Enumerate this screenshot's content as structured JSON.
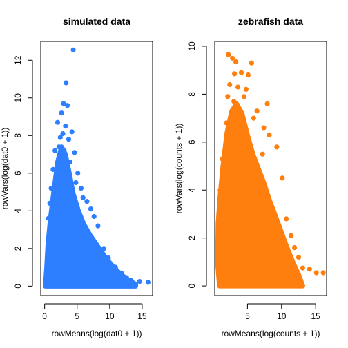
{
  "chart_data": [
    {
      "type": "scatter",
      "title": "simulated data",
      "xlabel": "rowMeans(log(dat0 + 1))",
      "ylabel": "rowVars(log(dat0 + 1))",
      "color": "#2e7fff",
      "xlim": [
        -0.6,
        16.6
      ],
      "ylim": [
        -0.5,
        13.0
      ],
      "xticks": [
        0,
        5,
        10,
        15
      ],
      "xtick_labels": [
        "0",
        "5",
        "10",
        "15"
      ],
      "yticks": [
        0,
        2,
        4,
        6,
        8,
        10,
        12
      ],
      "ytick_labels": [
        "0",
        "2",
        "4",
        "6",
        "8",
        "10",
        "12"
      ],
      "grid": false,
      "legend": "none",
      "points": [
        [
          4.4,
          12.55
        ],
        [
          3.3,
          10.8
        ],
        [
          2.9,
          9.7
        ],
        [
          3.5,
          9.6
        ],
        [
          2.6,
          9.2
        ],
        [
          2.0,
          8.7
        ],
        [
          3.2,
          8.5
        ],
        [
          2.8,
          8.1
        ],
        [
          2.4,
          7.9
        ],
        [
          4.2,
          8.2
        ],
        [
          3.7,
          7.8
        ],
        [
          2.2,
          7.4
        ],
        [
          3.0,
          7.2
        ],
        [
          1.6,
          7.2
        ],
        [
          4.6,
          7.1
        ],
        [
          2.5,
          6.8
        ],
        [
          3.9,
          6.6
        ],
        [
          1.3,
          6.2
        ],
        [
          5.1,
          6.0
        ],
        [
          4.8,
          5.5
        ],
        [
          5.6,
          5.2
        ],
        [
          1.0,
          5.2
        ],
        [
          6.5,
          4.5
        ],
        [
          7.1,
          4.1
        ],
        [
          5.9,
          4.7
        ],
        [
          8.2,
          3.2
        ],
        [
          7.6,
          3.7
        ],
        [
          0.8,
          4.4
        ],
        [
          0.6,
          3.6
        ],
        [
          13.3,
          0.3
        ],
        [
          14.6,
          0.25
        ],
        [
          15.9,
          0.2
        ],
        [
          12.6,
          0.45
        ],
        [
          11.8,
          0.7
        ],
        [
          10.9,
          1.0
        ],
        [
          9.8,
          1.5
        ],
        [
          9.1,
          2.0
        ]
      ],
      "cloud": [
        [
          0.1,
          0
        ],
        [
          0.3,
          0.9
        ],
        [
          0.5,
          2.2
        ],
        [
          0.9,
          3.6
        ],
        [
          1.4,
          5.0
        ],
        [
          2.0,
          6.6
        ],
        [
          2.6,
          7.4
        ],
        [
          3.2,
          7.0
        ],
        [
          3.8,
          6.0
        ],
        [
          4.4,
          4.9
        ],
        [
          5.2,
          4.0
        ],
        [
          6.0,
          3.3
        ],
        [
          7.0,
          2.7
        ],
        [
          8.2,
          2.1
        ],
        [
          9.4,
          1.5
        ],
        [
          10.6,
          1.0
        ],
        [
          11.8,
          0.6
        ],
        [
          13.0,
          0.3
        ],
        [
          14.0,
          0.1
        ],
        [
          14.0,
          0
        ],
        [
          0.1,
          0
        ]
      ]
    },
    {
      "type": "scatter",
      "title": "zebrafish data",
      "xlabel": "rowMeans(log(counts + 1))",
      "ylabel": "rowVars(log(counts + 1))",
      "color": "#ff7f0e",
      "xlim": [
        0.2,
        16.6
      ],
      "ylim": [
        -0.4,
        10.2
      ],
      "xticks": [
        5,
        10,
        15
      ],
      "xtick_labels": [
        "5",
        "10",
        "15"
      ],
      "yticks": [
        0,
        2,
        4,
        6,
        8,
        10
      ],
      "ytick_labels": [
        "0",
        "2",
        "4",
        "6",
        "8",
        "10"
      ],
      "grid": false,
      "legend": "none",
      "points": [
        [
          2.2,
          9.65
        ],
        [
          2.8,
          9.5
        ],
        [
          3.3,
          9.35
        ],
        [
          5.6,
          9.3
        ],
        [
          4.1,
          8.9
        ],
        [
          5.1,
          8.8
        ],
        [
          3.1,
          8.85
        ],
        [
          2.4,
          8.4
        ],
        [
          3.6,
          8.3
        ],
        [
          4.8,
          8.2
        ],
        [
          2.1,
          7.9
        ],
        [
          3.0,
          7.7
        ],
        [
          4.5,
          7.9
        ],
        [
          7.9,
          7.6
        ],
        [
          6.4,
          7.3
        ],
        [
          5.9,
          7.0
        ],
        [
          7.4,
          6.6
        ],
        [
          8.2,
          6.3
        ],
        [
          9.3,
          5.8
        ],
        [
          7.2,
          5.5
        ],
        [
          10.1,
          4.5
        ],
        [
          1.9,
          6.8
        ],
        [
          1.3,
          5.3
        ],
        [
          1.0,
          4.0
        ],
        [
          11.4,
          2.1
        ],
        [
          11.9,
          1.6
        ],
        [
          13.1,
          0.75
        ],
        [
          14.1,
          0.7
        ],
        [
          15.1,
          0.55
        ],
        [
          16.1,
          0.55
        ],
        [
          12.5,
          1.2
        ],
        [
          10.7,
          2.8
        ]
      ],
      "cloud": [
        [
          0.6,
          1.0
        ],
        [
          0.7,
          2.6
        ],
        [
          1.0,
          3.8
        ],
        [
          1.4,
          5.0
        ],
        [
          2.0,
          6.4
        ],
        [
          2.7,
          7.3
        ],
        [
          3.4,
          7.6
        ],
        [
          4.2,
          7.2
        ],
        [
          5.0,
          6.3
        ],
        [
          5.8,
          5.5
        ],
        [
          6.6,
          4.9
        ],
        [
          7.4,
          4.3
        ],
        [
          8.2,
          3.6
        ],
        [
          9.0,
          3.0
        ],
        [
          9.9,
          2.3
        ],
        [
          10.8,
          1.6
        ],
        [
          11.8,
          0.9
        ],
        [
          12.6,
          0.4
        ],
        [
          13.1,
          0.0
        ],
        [
          0.9,
          0.0
        ],
        [
          0.6,
          1.0
        ]
      ]
    }
  ]
}
